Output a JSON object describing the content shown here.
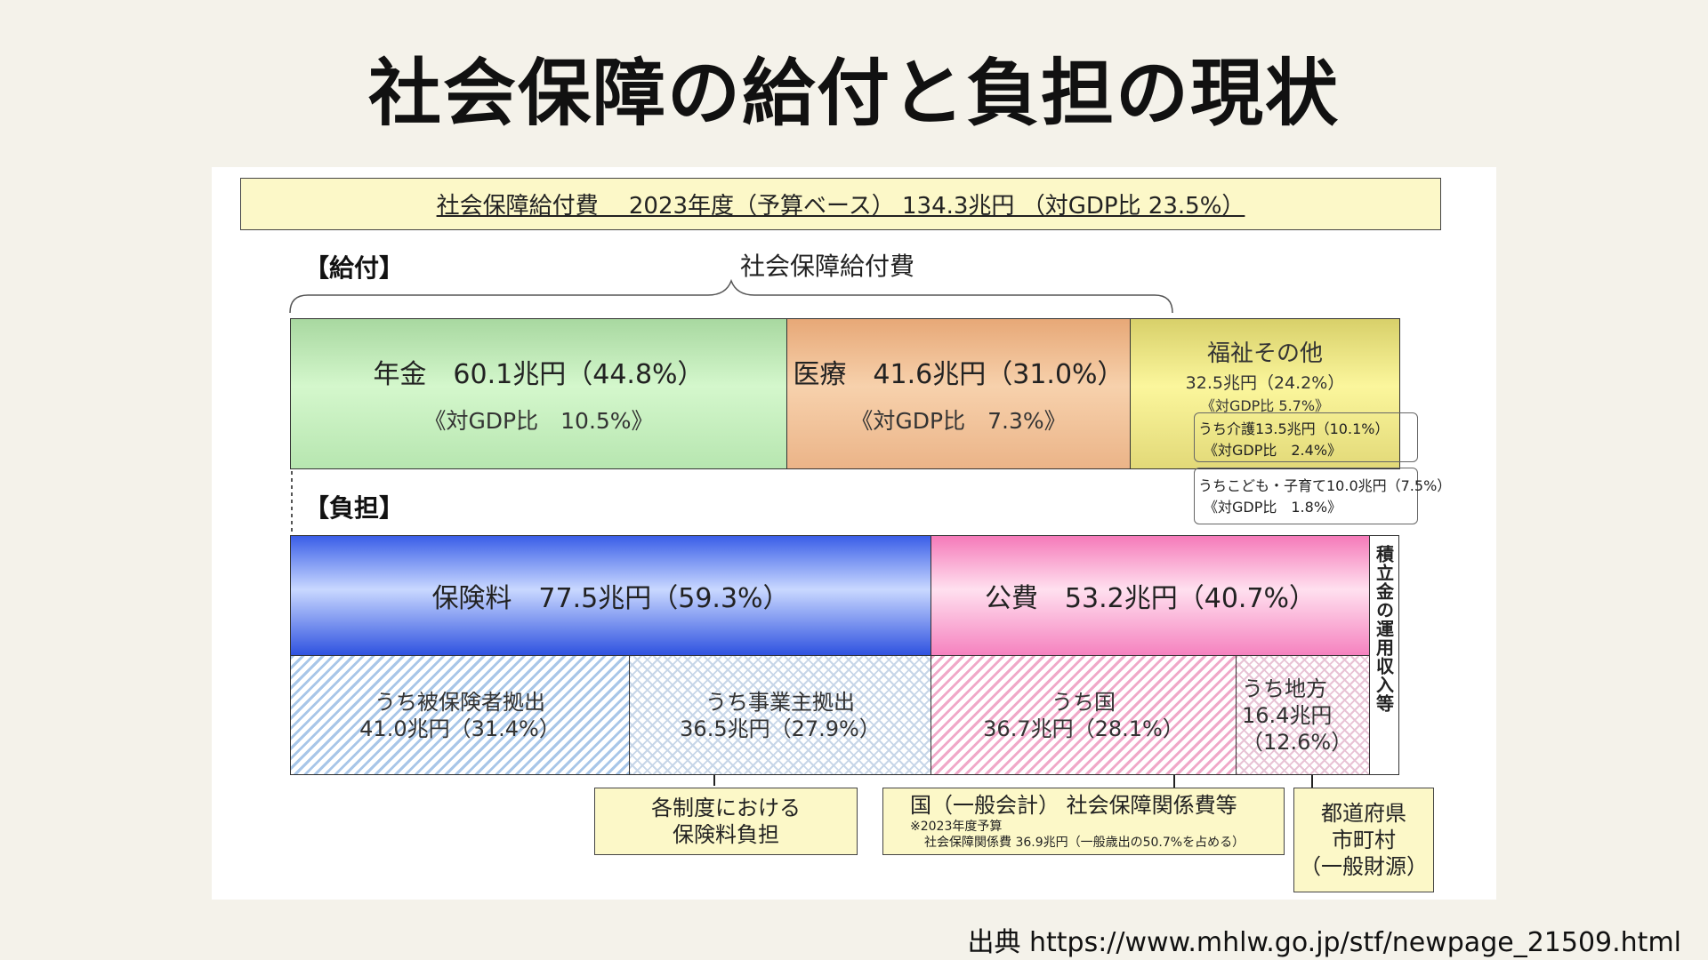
{
  "title": "社会保障の給付と負担の現状",
  "header_box": "社会保障給付費　 2023年度（予算ベース）  134.3兆円 （対GDP比  23.5%）",
  "benefits": {
    "label": "【給付】",
    "brace_label": "社会保障給付費",
    "pension": {
      "title": "年金　60.1兆円（44.8%）",
      "gdp": "《対GDP比　10.5%》",
      "share": 44.8
    },
    "medical": {
      "title": "医療　41.6兆円（31.0%）",
      "gdp": "《対GDP比　7.3%》",
      "share": 31.0
    },
    "welfare": {
      "title": "福祉その他",
      "amount": "32.5兆円（24.2%）",
      "gdp": "《対GDP比 5.7%》",
      "share": 24.2,
      "care_amount": "うち介護13.5兆円（10.1%）",
      "care_gdp": "《対GDP比　2.4%》",
      "child_amount": "うちこども・子育て10.0兆円（7.5%）",
      "child_gdp": "《対GDP比　1.8%》"
    }
  },
  "burden": {
    "label": "【負担】",
    "insurance": {
      "title": "保険料　77.5兆円（59.3%）",
      "share": 59.3
    },
    "public": {
      "title": "公費　53.2兆円（40.7%）",
      "share": 40.7
    },
    "reserve": "積立金の運用収入等",
    "insured": {
      "line1": "うち被保険者拠出",
      "line2": "41.0兆円（31.4%）"
    },
    "employer": {
      "line1": "うち事業主拠出",
      "line2": "36.5兆円（27.9%）"
    },
    "national": {
      "line1": "うち国",
      "line2": "36.7兆円（28.1%）"
    },
    "local": {
      "line1": "うち地方",
      "line2": "16.4兆円",
      "line3": "（12.6%）"
    }
  },
  "notes": {
    "premium": {
      "line1": "各制度における",
      "line2": "保険料負担"
    },
    "national": {
      "line1": "国（一般会計） 社会保障関係費等",
      "small1": "※2023年度予算",
      "small2": "社会保障関係費 36.9兆円（一般歳出の50.7%を占める）"
    },
    "local": {
      "line1": "都道府県",
      "line2": "市町村",
      "line3": "（一般財源）"
    }
  },
  "source": "出典 https://www.mhlw.go.jp/stf/newpage_21509.html"
}
